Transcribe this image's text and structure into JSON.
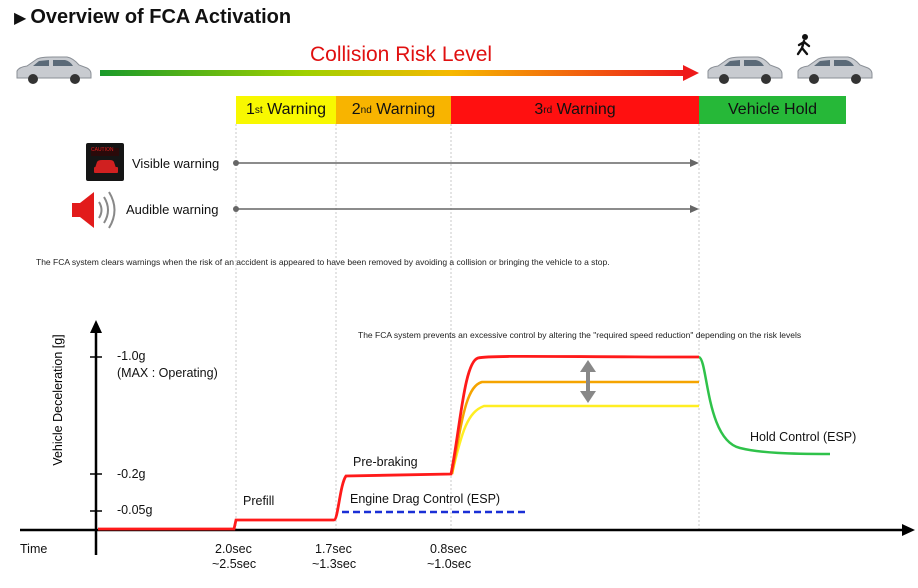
{
  "title": "Overview of FCA Activation",
  "risk_label": "Collision Risk Level",
  "stages": {
    "w1_num": "1",
    "w1_sup": "st",
    "w1_text": " Warning",
    "w2_num": "2",
    "w2_sup": "nd",
    "w2_text": " Warning",
    "w3_num": "3",
    "w3_sup": "rd",
    "w3_text": " Warning",
    "hold": "Vehicle Hold"
  },
  "warnings": {
    "visible": "Visible warning",
    "audible": "Audible warning",
    "caution_icon_text": "CAUTION"
  },
  "notes": {
    "clears": "The FCA system clears warnings when the risk of an accident is appeared to have been removed by avoiding a collision or bringing the vehicle to a stop.",
    "prevents": "The FCA system prevents an excessive control by altering the \"required speed reduction\" depending on the risk levels"
  },
  "graph": {
    "y_axis_label": "Vehicle Deceleration [g]",
    "x_axis_label": "Time",
    "y_ticks": [
      "-1.0g",
      "-0.2g",
      "-0.05g"
    ],
    "max_note": "(MAX : Operating)",
    "labels": {
      "prefill": "Prefill",
      "prebraking": "Pre-braking",
      "engine_drag": "Engine Drag Control (ESP)",
      "hold_control": "Hold Control (ESP)"
    },
    "time_ticks": [
      {
        "line1": "2.0sec",
        "line2": "~2.5sec"
      },
      {
        "line1": "1.7sec",
        "line2": "~1.3sec"
      },
      {
        "line1": "0.8sec",
        "line2": "~1.0sec"
      }
    ]
  },
  "colors": {
    "red": "#ff1a1a",
    "orange": "#f5a400",
    "yellow": "#ffee22",
    "green": "#2fc24a",
    "blue": "#1a2fd6",
    "stage_yellow": "#f8f800",
    "stage_orange": "#f8b400",
    "stage_red": "#ff1010",
    "stage_green": "#26b838"
  },
  "icons": [
    "car-icon",
    "pedestrian-icon",
    "caution-display-icon",
    "speaker-icon",
    "arrow-right-icon"
  ]
}
